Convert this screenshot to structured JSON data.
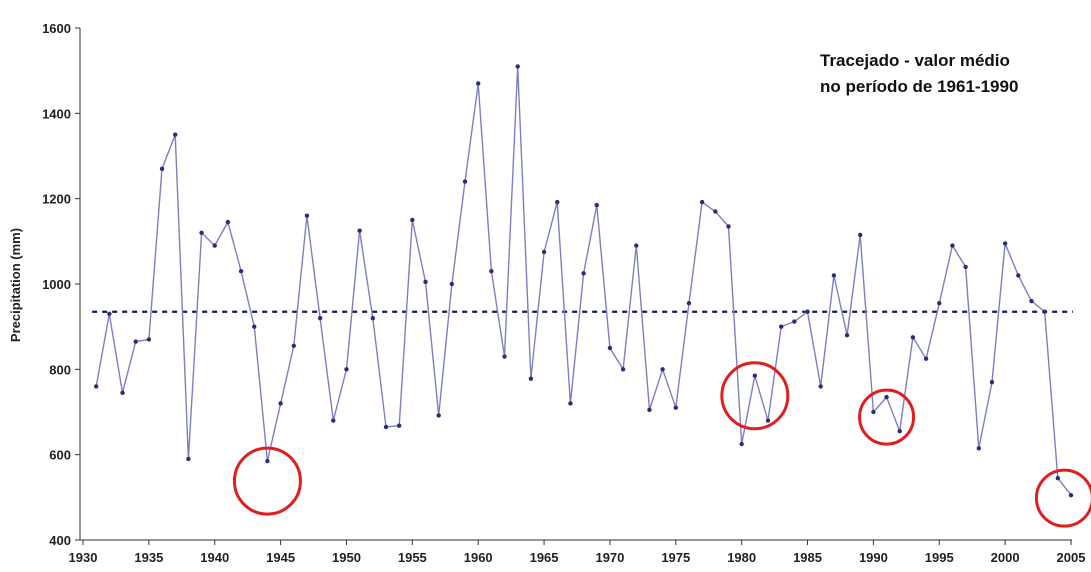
{
  "chart_data": {
    "type": "line",
    "title": "",
    "xlabel": "",
    "ylabel": "Precipitation (mm)",
    "xlim": [
      1930,
      2005
    ],
    "ylim": [
      400,
      1600
    ],
    "x_ticks": [
      "1930",
      "1935",
      "1940",
      "1945",
      "1950",
      "1955",
      "1960",
      "1965",
      "1970",
      "1975",
      "1980",
      "1985",
      "1990",
      "1995",
      "2000",
      "2005"
    ],
    "y_ticks": [
      "400",
      "600",
      "800",
      "1000",
      "1200",
      "1400",
      "1600"
    ],
    "grid": false,
    "annotation": [
      "Tracejado - valor médio",
      "no período de 1961-1990"
    ],
    "reference_line": {
      "y": 935,
      "style": "dashed"
    },
    "highlighted_x": [
      1944,
      1981,
      1991,
      2004.5
    ],
    "colors": {
      "line": "#7b7fc4",
      "marker": "#2b2d7a",
      "reference": "#1a1a5a",
      "circle": "#e01e1e"
    },
    "series": [
      {
        "x": [
          1931,
          1932,
          1933,
          1934,
          1935,
          1936,
          1937,
          1938,
          1939,
          1940,
          1941,
          1942,
          1943,
          1944,
          1945,
          1946,
          1947,
          1948,
          1949,
          1950,
          1951,
          1952,
          1953,
          1954,
          1955,
          1956,
          1957,
          1958,
          1959,
          1960,
          1961,
          1962,
          1963,
          1964,
          1965,
          1966,
          1967,
          1968,
          1969,
          1970,
          1971,
          1972,
          1973,
          1974,
          1975,
          1976,
          1977,
          1978,
          1979,
          1980,
          1981,
          1982,
          1983,
          1984,
          1985,
          1986,
          1987,
          1988,
          1989,
          1990,
          1991,
          1992,
          1993,
          1994,
          1995,
          1996,
          1997,
          1998,
          1999,
          2000,
          2001,
          2002,
          2003,
          2004,
          2005
        ],
        "y": [
          760,
          930,
          745,
          865,
          870,
          1270,
          1350,
          590,
          1120,
          1090,
          1145,
          1030,
          900,
          585,
          720,
          855,
          1160,
          920,
          680,
          800,
          1125,
          920,
          665,
          668,
          1150,
          1005,
          692,
          1000,
          1240,
          1470,
          1030,
          830,
          1510,
          778,
          1075,
          1192,
          720,
          1025,
          1185,
          850,
          800,
          1090,
          705,
          800,
          710,
          955,
          1192,
          1170,
          1135,
          625,
          785,
          680,
          900,
          912,
          935,
          760,
          1020,
          880,
          1115,
          700,
          735,
          655,
          875,
          825,
          955,
          1090,
          1040,
          615,
          770,
          1095,
          1020,
          960,
          935,
          545,
          505
        ]
      }
    ]
  }
}
